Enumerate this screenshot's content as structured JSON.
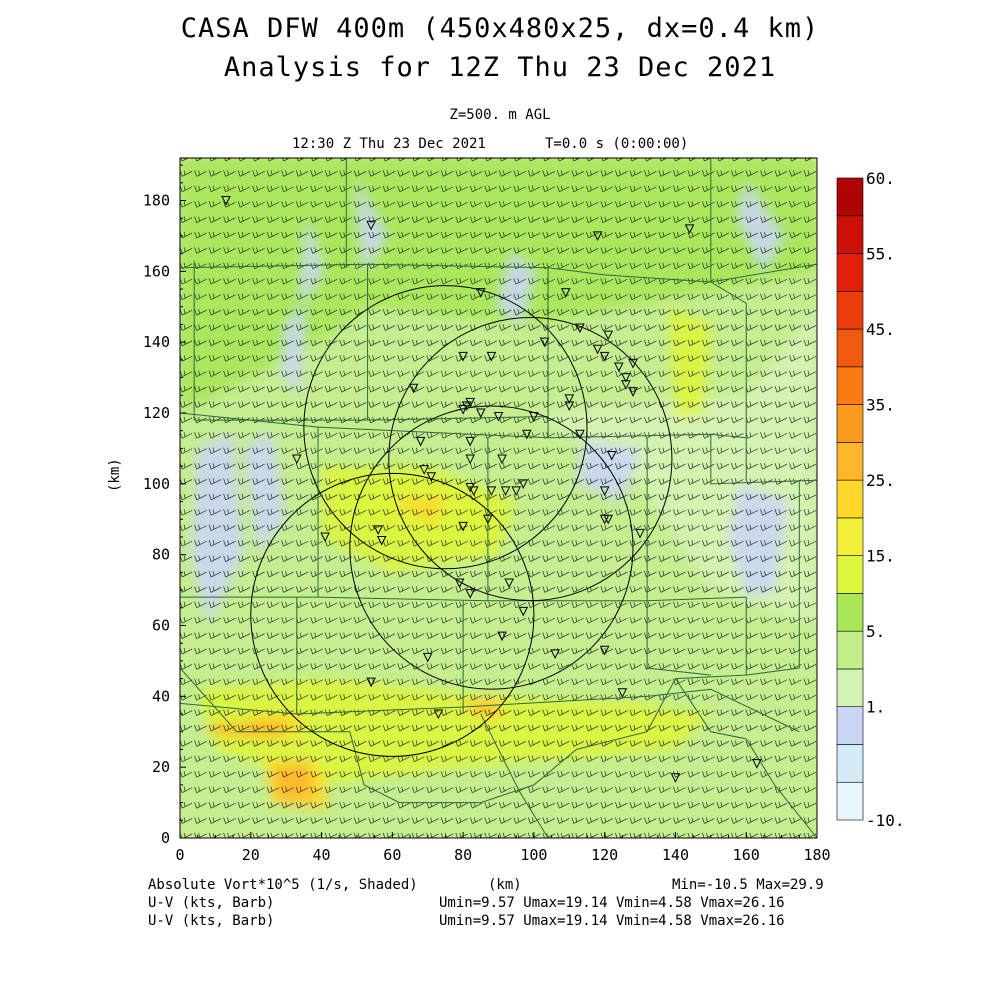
{
  "chart_data": {
    "type": "heatmap",
    "title": "CASA DFW 400m (450x480x25, dx=0.4 km)",
    "subtitle": "Analysis for 12Z Thu 23 Dec 2021",
    "level": "Z=500. m AGL",
    "valid_time": "12:30 Z Thu 23 Dec 2021",
    "time_offset": "T=0.0 s (0:00:00)",
    "xlabel": "(km)",
    "ylabel": "(km)",
    "xlim": [
      0,
      180
    ],
    "ylim": [
      0,
      192
    ],
    "x_ticks": [
      "0",
      "20",
      "40",
      "60",
      "80",
      "100",
      "120",
      "140",
      "160",
      "180"
    ],
    "y_ticks": [
      "0",
      "20",
      "40",
      "60",
      "80",
      "100",
      "120",
      "140",
      "160",
      "180"
    ],
    "colorbar": {
      "levels": [
        -10,
        1,
        5,
        15,
        25,
        35,
        45,
        55,
        60
      ],
      "labels": [
        "-10.",
        "1.",
        "5.",
        "15.",
        "25.",
        "35.",
        "45.",
        "55.",
        "60."
      ],
      "colors": [
        "#e8f6fc",
        "#d4ecf8",
        "#cad6f4",
        "#d6f2b4",
        "#c2ee8c",
        "#a8e658",
        "#ddf53c",
        "#f2f03a",
        "#ffd82a",
        "#ffb62a",
        "#fc9a20",
        "#fa7a14",
        "#f05a10",
        "#ec3e0c",
        "#e0200a",
        "#cc1008",
        "#b00404"
      ]
    },
    "shaded_field": "Absolute Vort*10^5 (1/s, Shaded)",
    "shaded_stats": "Min=-10.5 Max=29.9",
    "vector_fields": [
      {
        "name": "U-V (kts, Barb)",
        "stats": "Umin=9.57 Umax=19.14 Vmin=4.58 Vmax=26.16"
      },
      {
        "name": "U-V (kts, Barb)",
        "stats": "Umin=9.57 Umax=19.14 Vmin=4.58 Vmax=26.16"
      }
    ],
    "radar_range_rings_km": [
      {
        "cx": 75,
        "cy": 116,
        "r": 40
      },
      {
        "cx": 88,
        "cy": 82,
        "r": 40
      },
      {
        "cx": 99,
        "cy": 107,
        "r": 40
      },
      {
        "cx": 60,
        "cy": 63,
        "r": 40
      }
    ],
    "station_markers_km": [
      [
        13,
        180
      ],
      [
        54,
        173
      ],
      [
        118,
        170
      ],
      [
        144,
        172
      ],
      [
        85,
        154
      ],
      [
        109,
        154
      ],
      [
        113,
        144
      ],
      [
        121,
        142
      ],
      [
        103,
        140
      ],
      [
        80,
        136
      ],
      [
        88,
        136
      ],
      [
        118,
        138
      ],
      [
        120,
        136
      ],
      [
        124,
        133
      ],
      [
        128,
        134
      ],
      [
        126,
        130
      ],
      [
        126,
        128
      ],
      [
        110,
        124
      ],
      [
        128,
        126
      ],
      [
        66,
        127
      ],
      [
        81,
        122
      ],
      [
        82,
        123
      ],
      [
        80,
        121
      ],
      [
        85,
        120
      ],
      [
        90,
        119
      ],
      [
        100,
        119
      ],
      [
        110,
        122
      ],
      [
        113,
        114
      ],
      [
        98,
        114
      ],
      [
        122,
        108
      ],
      [
        68,
        112
      ],
      [
        82,
        112
      ],
      [
        33,
        107
      ],
      [
        82,
        107
      ],
      [
        91,
        107
      ],
      [
        69,
        104
      ],
      [
        71,
        102
      ],
      [
        82,
        99
      ],
      [
        83,
        98
      ],
      [
        88,
        98
      ],
      [
        92,
        98
      ],
      [
        95,
        98
      ],
      [
        97,
        100
      ],
      [
        120,
        98
      ],
      [
        121,
        90
      ],
      [
        87,
        90
      ],
      [
        80,
        88
      ],
      [
        120,
        90
      ],
      [
        130,
        86
      ],
      [
        56,
        87
      ],
      [
        57,
        84
      ],
      [
        41,
        85
      ],
      [
        79,
        72
      ],
      [
        93,
        72
      ],
      [
        82,
        69
      ],
      [
        97,
        64
      ],
      [
        91,
        57
      ],
      [
        120,
        53
      ],
      [
        106,
        52
      ],
      [
        70,
        51
      ],
      [
        54,
        44
      ],
      [
        125,
        41
      ],
      [
        73,
        35
      ],
      [
        140,
        17
      ],
      [
        163,
        21
      ]
    ],
    "counties": [
      [
        [
          0,
          161
        ],
        [
          0,
          194
        ]
      ],
      [
        [
          47,
          161
        ],
        [
          47,
          194
        ]
      ],
      [
        [
          0,
          161
        ],
        [
          53,
          162
        ],
        [
          104,
          161
        ]
      ],
      [
        [
          104,
          161
        ],
        [
          120,
          159
        ],
        [
          150,
          157
        ],
        [
          180,
          162
        ]
      ],
      [
        [
          150,
          157
        ],
        [
          150,
          194
        ]
      ],
      [
        [
          53,
          162
        ],
        [
          53,
          118
        ]
      ],
      [
        [
          104,
          161
        ],
        [
          104,
          113
        ]
      ],
      [
        [
          150,
          157
        ],
        [
          160,
          151
        ],
        [
          160,
          113
        ]
      ],
      [
        [
          4,
          163
        ],
        [
          4,
          118
        ]
      ],
      [
        [
          4,
          118
        ],
        [
          53,
          118
        ],
        [
          104,
          119
        ]
      ],
      [
        [
          0,
          120
        ],
        [
          39,
          116
        ]
      ],
      [
        [
          39,
          116
        ],
        [
          39,
          68
        ]
      ],
      [
        [
          39,
          116
        ],
        [
          104,
          113
        ]
      ],
      [
        [
          104,
          113
        ],
        [
          150,
          114
        ],
        [
          160,
          113
        ]
      ],
      [
        [
          87,
          113
        ],
        [
          87,
          67
        ]
      ],
      [
        [
          132,
          113
        ],
        [
          132,
          67
        ]
      ],
      [
        [
          150,
          114
        ],
        [
          150,
          100
        ],
        [
          180,
          101
        ]
      ],
      [
        [
          160,
          113
        ],
        [
          160,
          101
        ]
      ],
      [
        [
          175,
          101
        ],
        [
          175,
          48
        ]
      ],
      [
        [
          0,
          68
        ],
        [
          39,
          68
        ],
        [
          87,
          67
        ],
        [
          132,
          67
        ],
        [
          160,
          68
        ]
      ],
      [
        [
          175,
          48
        ],
        [
          160,
          46
        ],
        [
          140,
          45
        ]
      ],
      [
        [
          132,
          67
        ],
        [
          132,
          48
        ],
        [
          150,
          46
        ]
      ],
      [
        [
          160,
          68
        ],
        [
          160,
          46
        ]
      ],
      [
        [
          0,
          68
        ],
        [
          0,
          0
        ]
      ],
      [
        [
          33,
          68
        ],
        [
          33,
          35
        ]
      ],
      [
        [
          80,
          67
        ],
        [
          80,
          35
        ]
      ],
      [
        [
          33,
          35
        ],
        [
          0,
          38
        ]
      ],
      [
        [
          33,
          35
        ],
        [
          80,
          37
        ],
        [
          132,
          40
        ]
      ],
      [
        [
          0,
          48
        ],
        [
          16,
          30
        ],
        [
          48,
          30
        ],
        [
          52,
          15
        ],
        [
          62,
          10
        ],
        [
          85,
          10
        ],
        [
          100,
          15
        ],
        [
          112,
          25
        ],
        [
          132,
          30
        ],
        [
          140,
          45
        ]
      ],
      [
        [
          85,
          35
        ],
        [
          96,
          13
        ],
        [
          104,
          0
        ]
      ],
      [
        [
          140,
          45
        ],
        [
          150,
          30
        ],
        [
          160,
          28
        ],
        [
          168,
          15
        ],
        [
          180,
          0
        ]
      ],
      [
        [
          132,
          40
        ],
        [
          150,
          42
        ],
        [
          175,
          30
        ]
      ]
    ]
  }
}
